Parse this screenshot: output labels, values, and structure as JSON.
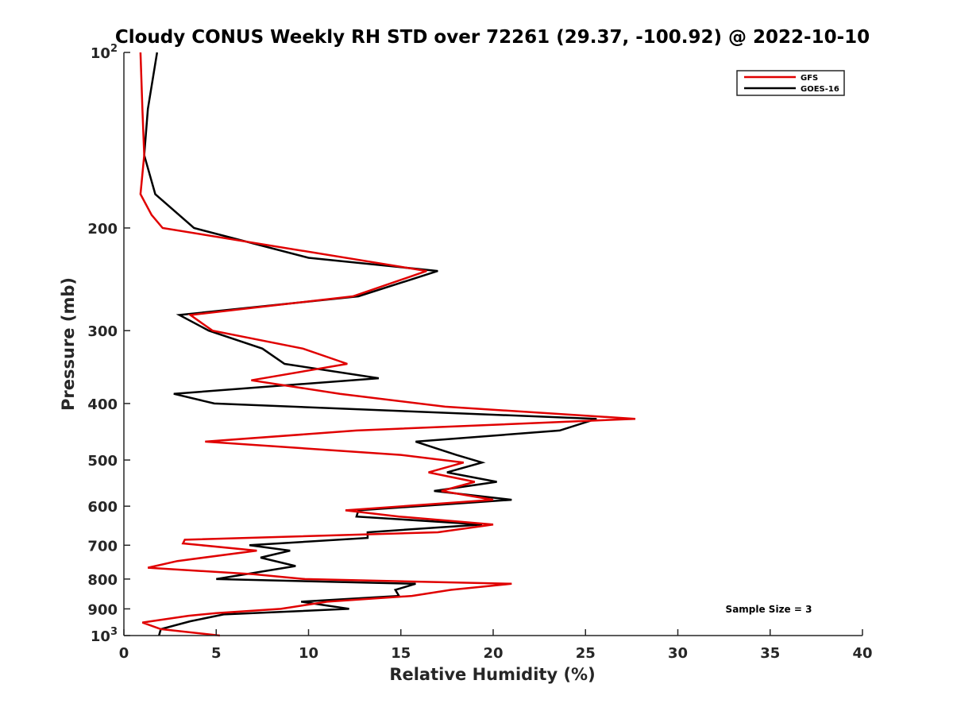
{
  "chart_data": {
    "type": "line",
    "title": "Cloudy CONUS Weekly RH STD over 72261 (29.37, -100.92) @ 2022-10-10",
    "xlabel": "Relative Humidity (%)",
    "ylabel": "Pressure (mb)",
    "xlim": [
      0,
      40
    ],
    "ylim": [
      100,
      1000
    ],
    "y_scale": "log",
    "y_reversed": true,
    "x_ticks": [
      0,
      5,
      10,
      15,
      20,
      25,
      30,
      35,
      40
    ],
    "x_tick_labels": [
      "0",
      "5",
      "10",
      "15",
      "20",
      "25",
      "30",
      "35",
      "40"
    ],
    "y_ticks": [
      100,
      200,
      300,
      400,
      500,
      600,
      700,
      800,
      900,
      1000
    ],
    "y_tick_labels": [
      {
        "base": "10",
        "exp": "2"
      },
      {
        "base": "200",
        "exp": ""
      },
      {
        "base": "300",
        "exp": ""
      },
      {
        "base": "400",
        "exp": ""
      },
      {
        "base": "500",
        "exp": ""
      },
      {
        "base": "600",
        "exp": ""
      },
      {
        "base": "700",
        "exp": ""
      },
      {
        "base": "800",
        "exp": ""
      },
      {
        "base": "900",
        "exp": ""
      },
      {
        "base": "10",
        "exp": "3"
      }
    ],
    "grid": false,
    "legend_position": "top-right",
    "series": [
      {
        "name": "GFS",
        "color": "#e00000",
        "points": [
          [
            0.9,
            100
          ],
          [
            1.0,
            125
          ],
          [
            1.1,
            150
          ],
          [
            0.9,
            175
          ],
          [
            1.5,
            190
          ],
          [
            2.1,
            200
          ],
          [
            16.4,
            237
          ],
          [
            12.4,
            262
          ],
          [
            3.6,
            282
          ],
          [
            4.8,
            300
          ],
          [
            9.7,
            322
          ],
          [
            12.1,
            342
          ],
          [
            6.9,
            365
          ],
          [
            11.7,
            385
          ],
          [
            17.4,
            405
          ],
          [
            27.7,
            425
          ],
          [
            12.6,
            445
          ],
          [
            4.4,
            465
          ],
          [
            15.0,
            490
          ],
          [
            18.4,
            505
          ],
          [
            16.5,
            525
          ],
          [
            19.0,
            545
          ],
          [
            17.2,
            565
          ],
          [
            20.0,
            585
          ],
          [
            12.0,
            610
          ],
          [
            14.9,
            625
          ],
          [
            20.0,
            645
          ],
          [
            17.0,
            665
          ],
          [
            3.3,
            685
          ],
          [
            3.2,
            695
          ],
          [
            7.2,
            715
          ],
          [
            2.9,
            745
          ],
          [
            1.3,
            765
          ],
          [
            7.0,
            785
          ],
          [
            9.8,
            800
          ],
          [
            21.0,
            815
          ],
          [
            17.7,
            835
          ],
          [
            15.6,
            855
          ],
          [
            11.0,
            875
          ],
          [
            8.5,
            900
          ],
          [
            5.0,
            915
          ],
          [
            3.5,
            925
          ],
          [
            1.0,
            950
          ],
          [
            2.0,
            975
          ],
          [
            5.2,
            1000
          ]
        ]
      },
      {
        "name": "GOES-16",
        "color": "#000000",
        "points": [
          [
            1.8,
            100
          ],
          [
            1.3,
            125
          ],
          [
            1.1,
            150
          ],
          [
            1.7,
            175
          ],
          [
            3.8,
            200
          ],
          [
            10.0,
            225
          ],
          [
            17.0,
            237
          ],
          [
            12.7,
            262
          ],
          [
            3.0,
            282
          ],
          [
            4.6,
            300
          ],
          [
            7.5,
            322
          ],
          [
            8.7,
            342
          ],
          [
            13.8,
            362
          ],
          [
            2.7,
            385
          ],
          [
            4.9,
            400
          ],
          [
            25.6,
            425
          ],
          [
            23.6,
            445
          ],
          [
            15.8,
            465
          ],
          [
            18.0,
            490
          ],
          [
            19.4,
            505
          ],
          [
            17.5,
            525
          ],
          [
            20.2,
            545
          ],
          [
            16.8,
            565
          ],
          [
            21.0,
            585
          ],
          [
            12.7,
            610
          ],
          [
            12.6,
            625
          ],
          [
            19.4,
            645
          ],
          [
            13.2,
            665
          ],
          [
            13.2,
            680
          ],
          [
            6.8,
            700
          ],
          [
            9.0,
            715
          ],
          [
            7.4,
            735
          ],
          [
            9.3,
            760
          ],
          [
            5.0,
            800
          ],
          [
            15.8,
            815
          ],
          [
            14.7,
            835
          ],
          [
            14.9,
            855
          ],
          [
            9.6,
            875
          ],
          [
            12.2,
            900
          ],
          [
            5.4,
            920
          ],
          [
            3.6,
            945
          ],
          [
            2.0,
            975
          ],
          [
            1.9,
            1000
          ]
        ]
      }
    ],
    "annotation": "Sample Size = 3"
  }
}
